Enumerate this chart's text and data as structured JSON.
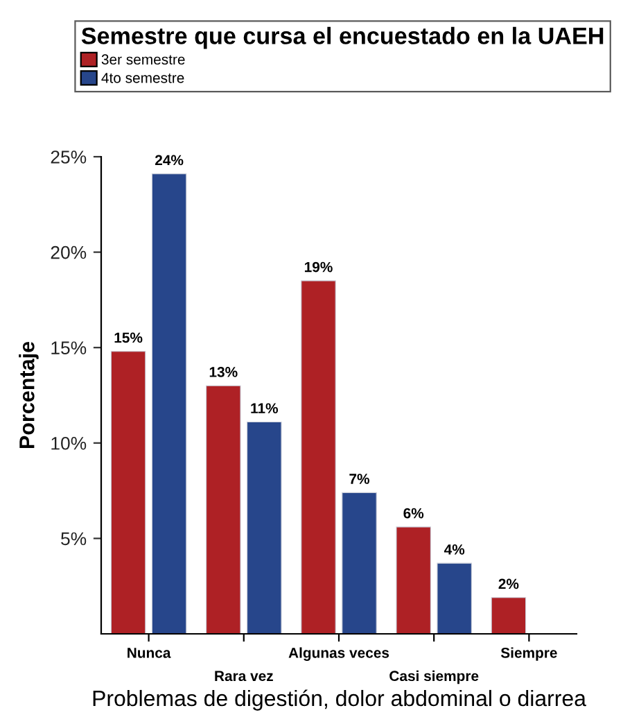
{
  "chart_data": {
    "type": "bar",
    "xlabel": "Problemas de digestión, dolor abdominal o diarrea",
    "ylabel": "Porcentaje",
    "legend_title": "Semestre que cursa el encuestado en la UAEH",
    "legend": "top",
    "categories": [
      "Nunca",
      "Rara vez",
      "Algunas veces",
      "Casi siempre",
      "Siempre"
    ],
    "series": [
      {
        "name": "3er semestre",
        "color": "#ae2125",
        "values": [
          14.8,
          13.0,
          18.5,
          5.6,
          1.9
        ],
        "value_labels": [
          "15%",
          "13%",
          "19%",
          "6%",
          "2%"
        ]
      },
      {
        "name": "4to semestre",
        "color": "#27468b",
        "values": [
          24.1,
          11.1,
          7.4,
          3.7,
          null
        ],
        "value_labels": [
          "24%",
          "11%",
          "7%",
          "4%",
          null
        ]
      }
    ],
    "ylim": [
      0,
      25
    ],
    "yticks": [
      {
        "value": 5,
        "label": "5%"
      },
      {
        "value": 10,
        "label": "10%"
      },
      {
        "value": 15,
        "label": "15%"
      },
      {
        "value": 20,
        "label": "20%"
      },
      {
        "value": 25,
        "label": "25%"
      }
    ]
  }
}
